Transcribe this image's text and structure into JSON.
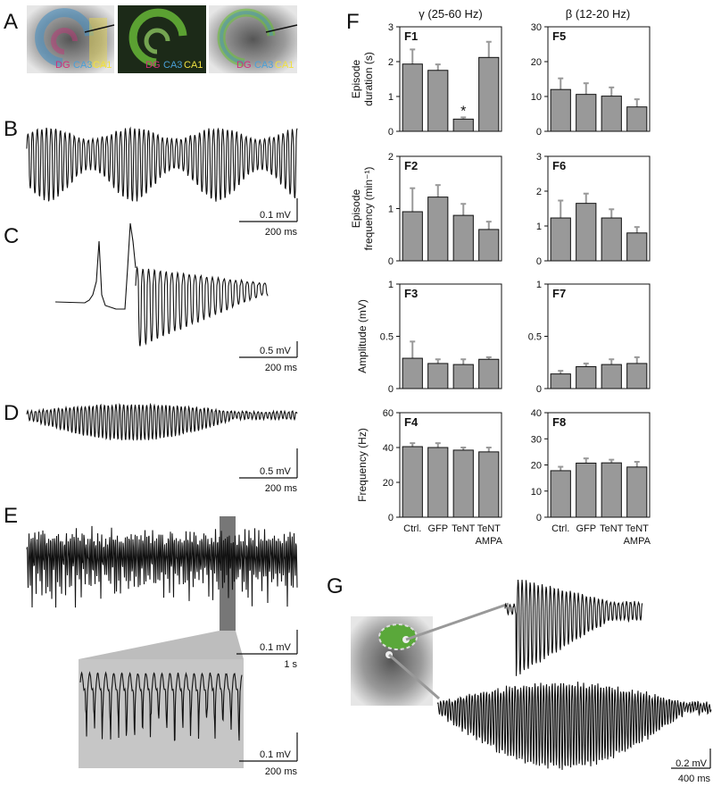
{
  "panel_labels": [
    "A",
    "B",
    "C",
    "D",
    "E",
    "F",
    "G"
  ],
  "region_labels": [
    "DG",
    "CA3",
    "CA1"
  ],
  "scale_bars": {
    "B": [
      "0.1 mV",
      "200 ms"
    ],
    "C": [
      "0.5 mV",
      "200 ms"
    ],
    "D": [
      "0.5 mV",
      "200 ms"
    ],
    "E": [
      "0.1 mV",
      "1 s"
    ],
    "E_inset": [
      "0.1 mV",
      "200 ms"
    ],
    "G": [
      "0.2 mV",
      "400 ms"
    ]
  },
  "column_titles": [
    "γ (25-60 Hz)",
    "β (12-20 Hz)"
  ],
  "chart_data": [
    {
      "type": "bar",
      "label": "F1",
      "ylabel": "Episode\nduration (s)",
      "values": [
        1.93,
        1.75,
        0.35,
        2.12
      ],
      "errors": [
        0.42,
        0.17,
        0.05,
        0.45
      ],
      "ylim": [
        0,
        3
      ],
      "yticks": [
        0,
        1,
        2,
        3
      ],
      "color": "#999999",
      "annotations": [
        {
          "index": 2,
          "text": "*"
        }
      ]
    },
    {
      "type": "bar",
      "label": "F2",
      "ylabel": "Episode\nfrequency (min⁻¹)",
      "values": [
        0.94,
        1.22,
        0.87,
        0.6
      ],
      "errors": [
        0.45,
        0.23,
        0.22,
        0.15
      ],
      "ylim": [
        0,
        2
      ],
      "yticks": [
        0,
        1,
        2
      ],
      "color": "#999999"
    },
    {
      "type": "bar",
      "label": "F3",
      "ylabel": "Amplitude (mV)",
      "values": [
        0.29,
        0.24,
        0.23,
        0.28
      ],
      "errors": [
        0.16,
        0.04,
        0.05,
        0.02
      ],
      "ylim": [
        0,
        1
      ],
      "yticks": [
        0,
        0.5,
        1
      ],
      "color": "#999999"
    },
    {
      "type": "bar",
      "label": "F4",
      "ylabel": "Frequency (Hz)",
      "categories": [
        "Ctrl.",
        "GFP",
        "TeNT",
        "TeNT\nAMPA"
      ],
      "values": [
        40.5,
        40,
        38.5,
        37.5
      ],
      "errors": [
        2,
        2.5,
        1.5,
        2.5
      ],
      "ylim": [
        0,
        60
      ],
      "yticks": [
        0,
        20,
        40,
        60
      ],
      "color": "#999999"
    },
    {
      "type": "bar",
      "label": "F5",
      "values": [
        12,
        10.6,
        10.1,
        7
      ],
      "errors": [
        3.2,
        3.2,
        2.5,
        2.2
      ],
      "ylim": [
        0,
        30
      ],
      "yticks": [
        0,
        10,
        20,
        30
      ],
      "color": "#999999"
    },
    {
      "type": "bar",
      "label": "F6",
      "values": [
        1.23,
        1.65,
        1.23,
        0.8
      ],
      "errors": [
        0.5,
        0.28,
        0.25,
        0.17
      ],
      "ylim": [
        0,
        3
      ],
      "yticks": [
        0,
        1,
        2,
        3
      ],
      "color": "#999999"
    },
    {
      "type": "bar",
      "label": "F7",
      "values": [
        0.14,
        0.21,
        0.23,
        0.24
      ],
      "errors": [
        0.03,
        0.03,
        0.05,
        0.06
      ],
      "ylim": [
        0,
        1
      ],
      "yticks": [
        0,
        0.5,
        1
      ],
      "color": "#999999"
    },
    {
      "type": "bar",
      "label": "F8",
      "categories": [
        "Ctrl.",
        "GFP",
        "TeNT",
        "TeNT\nAMPA"
      ],
      "values": [
        17.8,
        20.7,
        20.8,
        19.2
      ],
      "errors": [
        1.5,
        1.8,
        1.2,
        2
      ],
      "ylim": [
        0,
        40
      ],
      "yticks": [
        0,
        10,
        20,
        30,
        40
      ],
      "color": "#999999"
    }
  ]
}
